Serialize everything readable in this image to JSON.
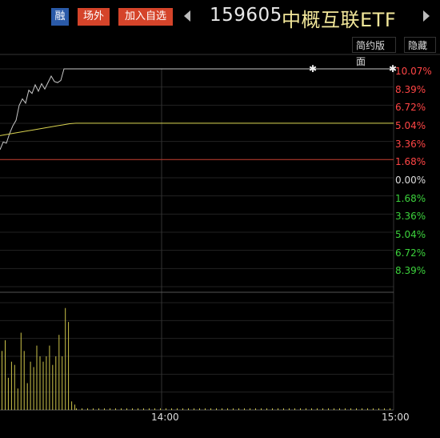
{
  "header": {
    "tags": {
      "rong": "融",
      "changwai": "场外",
      "add_watch": "加入自选"
    },
    "code": "159605",
    "name": "中概互联ETF",
    "simple_layout": "简约版面",
    "hide": "隐藏"
  },
  "colors": {
    "up": "#ff4545",
    "down": "#3cd23c",
    "neutral": "#dddddd",
    "avg_line": "#d8d250",
    "price_line": "#c8c8c8",
    "volume": "#cdc44a"
  },
  "chart_data": {
    "type": "line",
    "x_ticks": [
      "14:00",
      "15:00"
    ],
    "y_labels_up": [
      "10.07%",
      "8.39%",
      "6.72%",
      "5.04%",
      "3.36%",
      "1.68%"
    ],
    "y_label_zero": "0.00%",
    "y_labels_down": [
      "1.68%",
      "3.36%",
      "5.04%",
      "6.72%",
      "8.39%"
    ],
    "ylim_pct": [
      -10.07,
      10.07
    ],
    "limit_up_pct": 10.07,
    "prev_close_marker_pct": 1.68,
    "price_series_pct": [
      2.6,
      3.3,
      3.2,
      4.1,
      4.8,
      5.3,
      6.7,
      7.3,
      6.9,
      8.1,
      7.8,
      8.6,
      8.0,
      8.7,
      8.2,
      8.8,
      9.4,
      8.9,
      8.8,
      9.0,
      10.07,
      10.07,
      10.07,
      10.07
    ],
    "avg_series_pct": [
      3.9,
      4.0,
      4.1,
      4.2,
      4.3,
      4.4,
      4.5,
      4.6,
      4.7,
      4.8,
      4.9,
      5.0,
      5.04,
      5.04,
      5.04,
      5.04,
      5.04
    ],
    "volume_bars": [
      0.55,
      0.65,
      0.3,
      0.45,
      0.42,
      0.2,
      0.72,
      0.55,
      0.25,
      0.45,
      0.4,
      0.6,
      0.5,
      0.45,
      0.5,
      0.6,
      0.42,
      0.5,
      0.7,
      0.5,
      0.95,
      0.82,
      0.08,
      0.05
    ]
  }
}
